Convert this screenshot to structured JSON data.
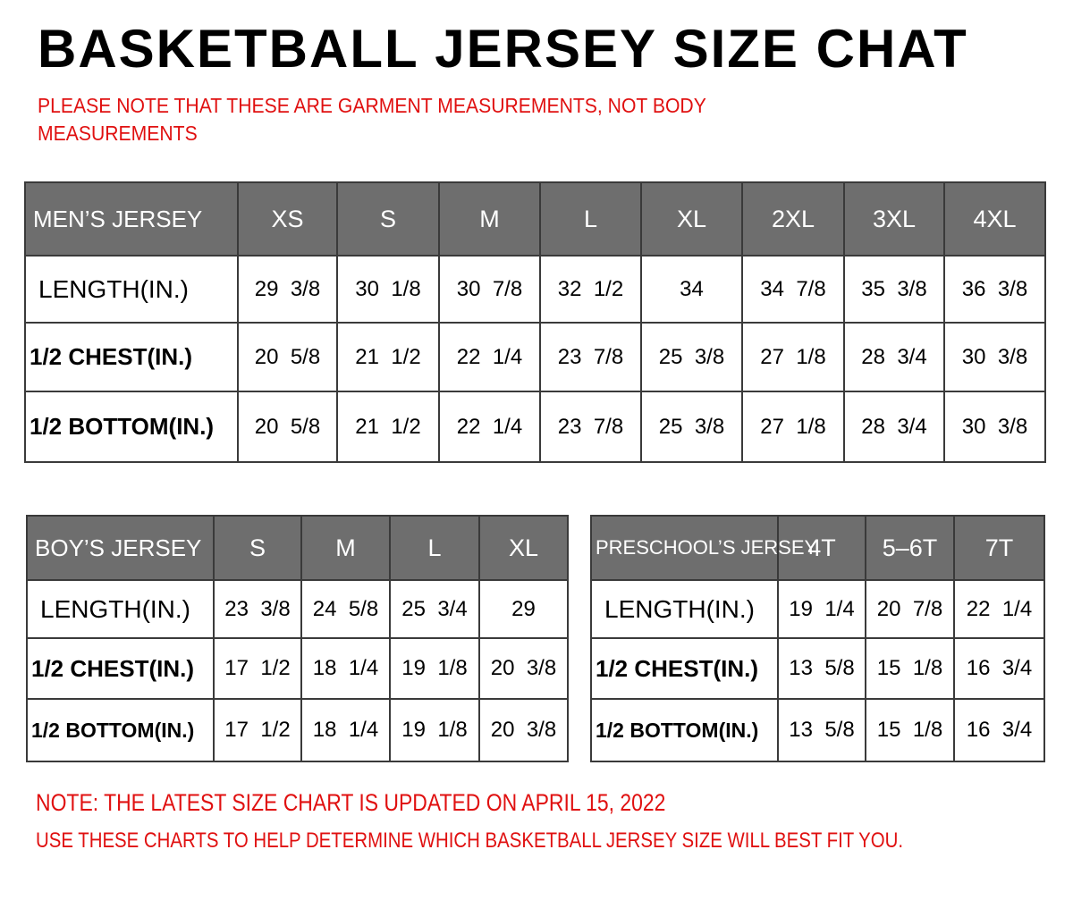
{
  "title": "BASKETBALL JERSEY SIZE CHAT",
  "notice": "PLEASE NOTE THAT THESE ARE GARMENT MEASUREMENTS, NOT BODY MEASUREMENTS",
  "tables": {
    "mens": {
      "heading": "MEN’S JERSEY",
      "sizes": [
        "XS",
        "S",
        "M",
        "L",
        "XL",
        "2XL",
        "3XL",
        "4XL"
      ],
      "rows": [
        {
          "label": "LENGTH(IN.)",
          "values": [
            "29  3/8",
            "30  1/8",
            "30  7/8",
            "32  1/2",
            "34",
            "34  7/8",
            "35  3/8",
            "36  3/8"
          ]
        },
        {
          "label": "1/2  CHEST(IN.)",
          "values": [
            "20  5/8",
            "21  1/2",
            "22  1/4",
            "23  7/8",
            "25  3/8",
            "27  1/8",
            "28  3/4",
            "30  3/8"
          ]
        },
        {
          "label": "1/2  BOTTOM(IN.)",
          "values": [
            "20  5/8",
            "21  1/2",
            "22  1/4",
            "23  7/8",
            "25  3/8",
            "27  1/8",
            "28  3/4",
            "30  3/8"
          ]
        }
      ]
    },
    "boys": {
      "heading": "BOY’S JERSEY",
      "sizes": [
        "S",
        "M",
        "L",
        "XL"
      ],
      "rows": [
        {
          "label": "LENGTH(IN.)",
          "values": [
            "23  3/8",
            "24  5/8",
            "25  3/4",
            "29"
          ]
        },
        {
          "label": "1/2  CHEST(IN.)",
          "values": [
            "17  1/2",
            "18  1/4",
            "19  1/8",
            "20  3/8"
          ]
        },
        {
          "label": "1/2  BOTTOM(IN.)",
          "values": [
            "17  1/2",
            "18  1/4",
            "19  1/8",
            "20  3/8"
          ]
        }
      ]
    },
    "preschool": {
      "heading": "PRESCHOOL’S JERSEY",
      "sizes": [
        "4T",
        "5–6T",
        "7T"
      ],
      "rows": [
        {
          "label": "LENGTH(IN.)",
          "values": [
            "19  1/4",
            "20  7/8",
            "22  1/4"
          ]
        },
        {
          "label": "1/2  CHEST(IN.)",
          "values": [
            "13  5/8",
            "15  1/8",
            "16  3/4"
          ]
        },
        {
          "label": "1/2  BOTTOM(IN.)",
          "values": [
            "13  5/8",
            "15  1/8",
            "16  3/4"
          ]
        }
      ]
    }
  },
  "footer": {
    "update_note": "NOTE: THE LATEST SIZE CHART IS UPDATED ON APRIL 15, 2022",
    "usage_note": "USE THESE CHARTS TO HELP DETERMINE WHICH  BASKETBALL JERSEY  SIZE WILL BEST FIT YOU."
  },
  "colors": {
    "header_bg": "#6e6e6e",
    "note_red": "#e01010"
  }
}
